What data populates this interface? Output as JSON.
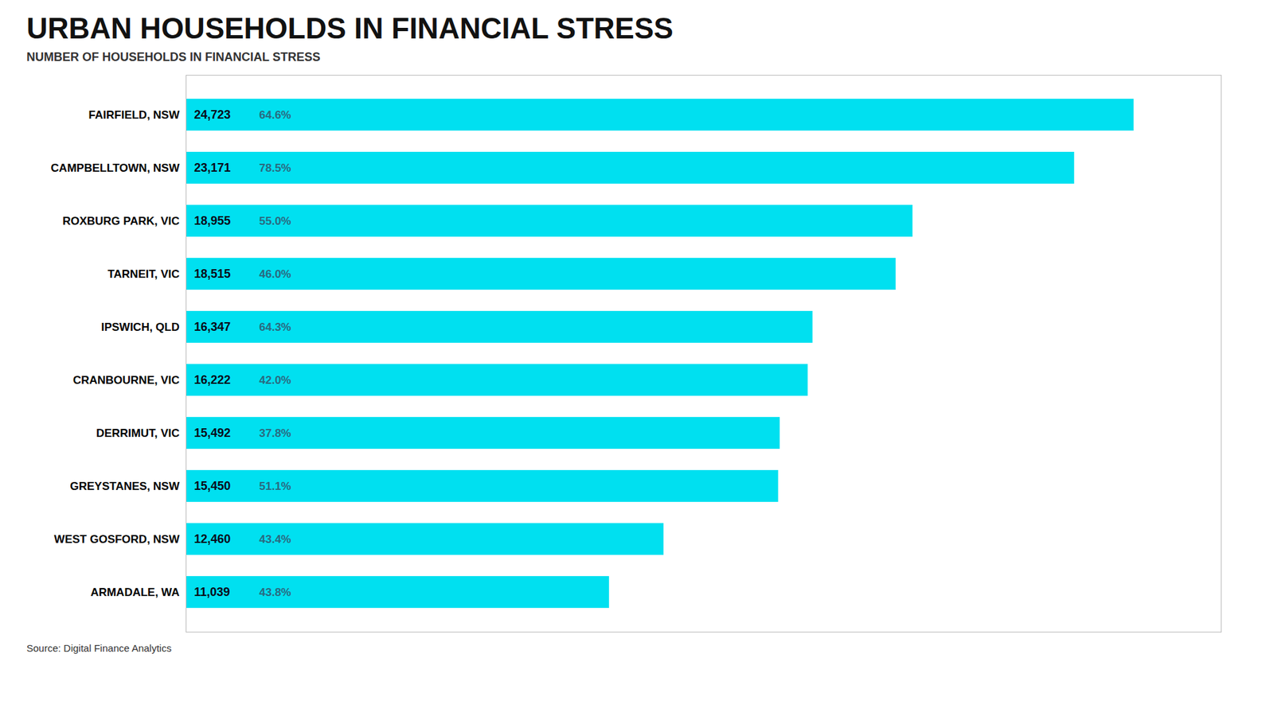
{
  "chart_data": {
    "type": "bar",
    "orientation": "horizontal",
    "title": "URBAN HOUSEHOLDS IN FINANCIAL STRESS",
    "subtitle": "NUMBER OF HOUSEHOLDS IN FINANCIAL STRESS",
    "source": "Source: Digital Finance Analytics",
    "categories": [
      "FAIRFIELD, NSW",
      "CAMPBELLTOWN, NSW",
      "ROXBURG PARK, VIC",
      "TARNEIT, VIC",
      "IPSWICH, QLD",
      "CRANBOURNE, VIC",
      "DERRIMUT, VIC",
      "GREYSTANES, NSW",
      "WEST GOSFORD, NSW",
      "ARMADALE, WA"
    ],
    "values": [
      24723,
      23171,
      18955,
      18515,
      16347,
      16222,
      15492,
      15450,
      12460,
      11039
    ],
    "value_labels": [
      "24,723",
      "23,171",
      "18,955",
      "18,515",
      "16,347",
      "16,222",
      "15,492",
      "15,450",
      "12,460",
      "11,039"
    ],
    "percentages": [
      "64.6%",
      "78.5%",
      "55.0%",
      "46.0%",
      "64.3%",
      "42.0%",
      "37.8%",
      "51.1%",
      "43.4%",
      "43.8%"
    ],
    "color": "#00e0f0",
    "xlim": [
      0,
      27000
    ],
    "grid": false,
    "data_labels": true,
    "tick_labels": "y"
  }
}
